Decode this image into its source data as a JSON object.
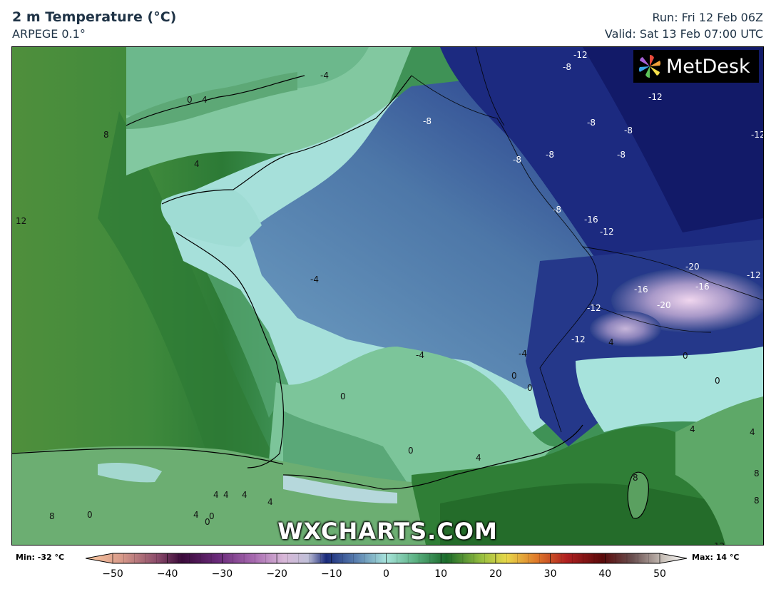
{
  "header": {
    "title": "2 m Temperature (°C)",
    "subtitle": "ARPEGE 0.1°",
    "run": "Run: Fri 12 Feb 06Z",
    "valid": "Valid: Sat 13 Feb 07:00 UTC"
  },
  "logo": {
    "icon": "metdesk-pinwheel-icon",
    "text": "MetDesk"
  },
  "watermark": "WXCHARTS.COM",
  "legend": {
    "min_label": "Min: -32 °C",
    "max_label": "Max: 14 °C",
    "ticks": [
      "−50",
      "−40",
      "−30",
      "−20",
      "−10",
      "0",
      "10",
      "20",
      "30",
      "40",
      "50"
    ],
    "range": [
      -50,
      50
    ]
  },
  "contour_labels": [
    {
      "t": "-12",
      "c": "#fff"
    },
    {
      "t": "-8",
      "c": "#fff"
    },
    {
      "t": "-12",
      "c": "#fff"
    },
    {
      "t": "-8",
      "c": "#fff"
    },
    {
      "t": "-8",
      "c": "#fff"
    },
    {
      "t": "-8",
      "c": "#fff"
    },
    {
      "t": "-12",
      "c": "#fff"
    },
    {
      "t": "-8",
      "c": "#fff"
    },
    {
      "t": "-8",
      "c": "#fff"
    },
    {
      "t": "-8",
      "c": "#fff"
    },
    {
      "t": "-12",
      "c": "#fff"
    },
    {
      "t": "-8",
      "c": "#fff"
    },
    {
      "t": "-16",
      "c": "#fff"
    },
    {
      "t": "-20",
      "c": "#fff"
    },
    {
      "t": "-16",
      "c": "#fff"
    },
    {
      "t": "-20",
      "c": "#fff"
    },
    {
      "t": "-12",
      "c": "#fff"
    },
    {
      "t": "-16",
      "c": "#fff"
    },
    {
      "t": "-12",
      "c": "#fff"
    },
    {
      "t": "-12",
      "c": "#fff"
    },
    {
      "t": "-4",
      "c": "#111"
    },
    {
      "t": "0",
      "c": "#111"
    },
    {
      "t": "4",
      "c": "#111"
    },
    {
      "t": "8",
      "c": "#111"
    },
    {
      "t": "4",
      "c": "#111"
    },
    {
      "t": "12",
      "c": "#111"
    },
    {
      "t": "-4",
      "c": "#111"
    },
    {
      "t": "-4",
      "c": "#111"
    },
    {
      "t": "-4",
      "c": "#111"
    },
    {
      "t": "0",
      "c": "#111"
    },
    {
      "t": "0",
      "c": "#111"
    },
    {
      "t": "4",
      "c": "#111"
    },
    {
      "t": "0",
      "c": "#111"
    },
    {
      "t": "0",
      "c": "#111"
    },
    {
      "t": "4",
      "c": "#111"
    },
    {
      "t": "0",
      "c": "#111"
    },
    {
      "t": "0",
      "c": "#111"
    },
    {
      "t": "4",
      "c": "#111"
    },
    {
      "t": "4",
      "c": "#111"
    },
    {
      "t": "8",
      "c": "#111"
    },
    {
      "t": "8",
      "c": "#111"
    },
    {
      "t": "4",
      "c": "#111"
    },
    {
      "t": "4",
      "c": "#111"
    },
    {
      "t": "4",
      "c": "#111"
    },
    {
      "t": "4",
      "c": "#111"
    },
    {
      "t": "8",
      "c": "#111"
    },
    {
      "t": "0",
      "c": "#111"
    },
    {
      "t": "4",
      "c": "#111"
    },
    {
      "t": "0",
      "c": "#111"
    },
    {
      "t": "0",
      "c": "#111"
    },
    {
      "t": "8",
      "c": "#111"
    },
    {
      "t": "12",
      "c": "#111"
    }
  ],
  "colors": {
    "sea_far": "#4a8a3a",
    "sea_mid": "#2e7d3a",
    "coastal": "#7cc49a",
    "cold_pale": "#9fdcd8",
    "cold_mid": "#5a86b0",
    "cold_deep": "#2a3f8a",
    "cold_extreme": "#141b6b",
    "alpine": "#e7c7e3",
    "header_text": "#1f3346"
  }
}
